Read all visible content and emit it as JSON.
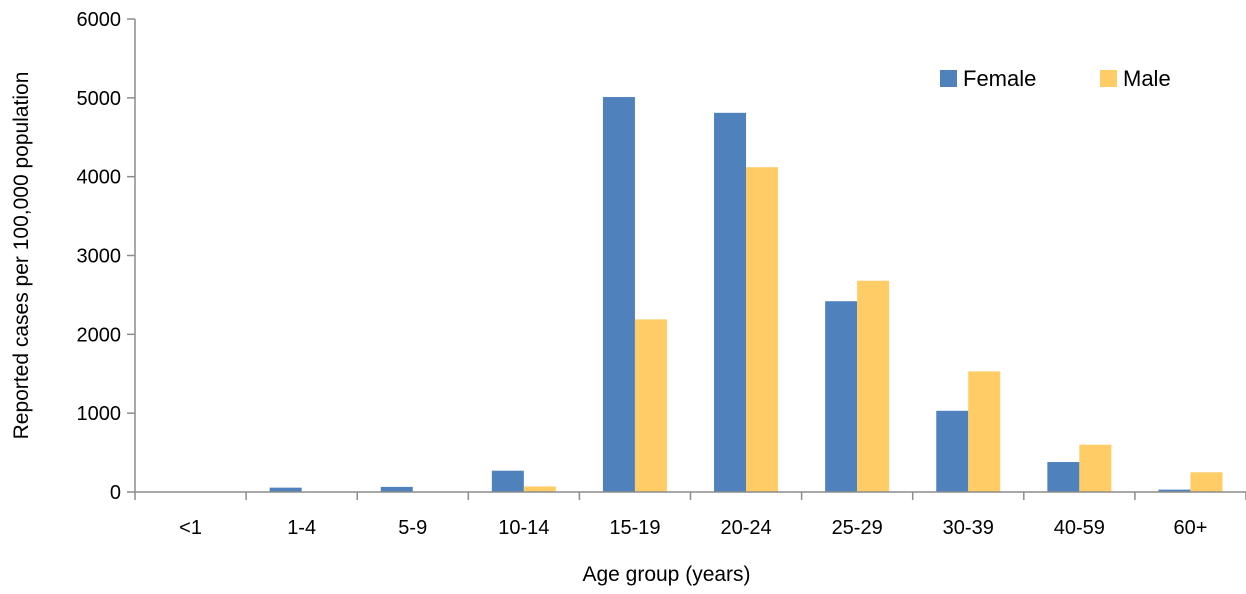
{
  "chart_data": {
    "type": "bar",
    "title": "",
    "xlabel": "Age group (years)",
    "ylabel": "Reported cases per 100,000 population",
    "categories": [
      "<1",
      "1-4",
      "5-9",
      "10-14",
      "15-19",
      "20-24",
      "25-29",
      "30-39",
      "40-59",
      "60+"
    ],
    "series": [
      {
        "name": "Female",
        "color": "#4F81BD",
        "values": [
          5,
          55,
          65,
          270,
          5010,
          4810,
          2420,
          1030,
          380,
          30
        ]
      },
      {
        "name": "Male",
        "color": "#FFCC66",
        "values": [
          2,
          5,
          5,
          70,
          2190,
          4120,
          2680,
          1530,
          600,
          250
        ]
      }
    ],
    "ylim": [
      0,
      6000
    ],
    "yticks": [
      0,
      1000,
      2000,
      3000,
      4000,
      5000,
      6000
    ],
    "grid": false,
    "legend_position": "top-right"
  }
}
